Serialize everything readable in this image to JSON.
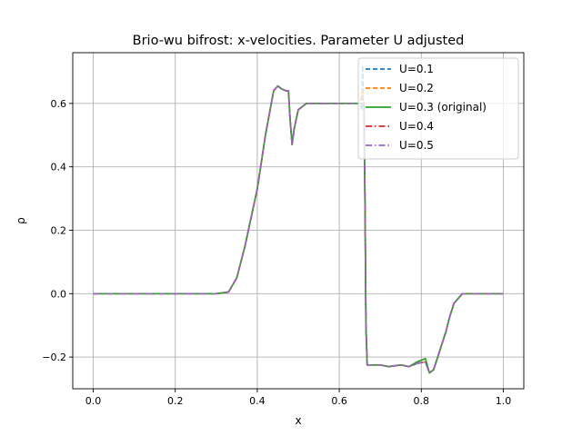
{
  "chart_data": {
    "type": "line",
    "title": "Brio-wu bifrost: x-velocities. Parameter U adjusted",
    "xlabel": "x",
    "ylabel": "ρ",
    "xlim": [
      -0.05,
      1.05
    ],
    "ylim": [
      -0.3,
      0.76
    ],
    "xticks": [
      0.0,
      0.2,
      0.4,
      0.6,
      0.8,
      1.0
    ],
    "xtick_labels": [
      "0.0",
      "0.2",
      "0.4",
      "0.6",
      "0.8",
      "1.0"
    ],
    "yticks": [
      -0.2,
      0.0,
      0.2,
      0.4,
      0.6
    ],
    "ytick_labels": [
      "−0.2",
      "0.0",
      "0.2",
      "0.4",
      "0.6"
    ],
    "grid": true,
    "legend_position": "top-right",
    "series": [
      {
        "name": "U=0.1",
        "color": "#1f77b4",
        "dash": "5,3",
        "width": 1.7,
        "points": [
          [
            0,
            0
          ],
          [
            0.1,
            0
          ],
          [
            0.2,
            0
          ],
          [
            0.3,
            0
          ],
          [
            0.33,
            0.005
          ],
          [
            0.35,
            0.05
          ],
          [
            0.37,
            0.15
          ],
          [
            0.4,
            0.33
          ],
          [
            0.42,
            0.5
          ],
          [
            0.44,
            0.64
          ],
          [
            0.45,
            0.655
          ],
          [
            0.46,
            0.645
          ],
          [
            0.47,
            0.64
          ],
          [
            0.476,
            0.64
          ],
          [
            0.48,
            0.55
          ],
          [
            0.485,
            0.47
          ],
          [
            0.49,
            0.52
          ],
          [
            0.5,
            0.58
          ],
          [
            0.52,
            0.6
          ],
          [
            0.55,
            0.6
          ],
          [
            0.6,
            0.6
          ],
          [
            0.63,
            0.6
          ],
          [
            0.65,
            0.6
          ],
          [
            0.655,
            0.58
          ],
          [
            0.657,
            0.72
          ],
          [
            0.659,
            0.58
          ],
          [
            0.661,
            0.6
          ],
          [
            0.663,
            0.25
          ],
          [
            0.665,
            -0.1
          ],
          [
            0.668,
            -0.225
          ],
          [
            0.7,
            -0.225
          ],
          [
            0.72,
            -0.23
          ],
          [
            0.75,
            -0.225
          ],
          [
            0.77,
            -0.23
          ],
          [
            0.79,
            -0.22
          ],
          [
            0.81,
            -0.215
          ],
          [
            0.82,
            -0.25
          ],
          [
            0.83,
            -0.24
          ],
          [
            0.845,
            -0.18
          ],
          [
            0.86,
            -0.12
          ],
          [
            0.87,
            -0.07
          ],
          [
            0.88,
            -0.03
          ],
          [
            0.9,
            0
          ],
          [
            0.95,
            0
          ],
          [
            1.0,
            0
          ]
        ]
      },
      {
        "name": "U=0.2",
        "color": "#ff7f0e",
        "dash": "5,3",
        "width": 1.7,
        "points": [
          [
            0,
            0
          ],
          [
            0.1,
            0
          ],
          [
            0.2,
            0
          ],
          [
            0.3,
            0
          ],
          [
            0.33,
            0.005
          ],
          [
            0.35,
            0.05
          ],
          [
            0.37,
            0.15
          ],
          [
            0.4,
            0.33
          ],
          [
            0.42,
            0.5
          ],
          [
            0.44,
            0.64
          ],
          [
            0.45,
            0.655
          ],
          [
            0.46,
            0.645
          ],
          [
            0.47,
            0.64
          ],
          [
            0.476,
            0.64
          ],
          [
            0.48,
            0.55
          ],
          [
            0.485,
            0.47
          ],
          [
            0.49,
            0.52
          ],
          [
            0.5,
            0.58
          ],
          [
            0.52,
            0.6
          ],
          [
            0.55,
            0.6
          ],
          [
            0.6,
            0.6
          ],
          [
            0.63,
            0.6
          ],
          [
            0.65,
            0.6
          ],
          [
            0.657,
            0.64
          ],
          [
            0.66,
            0.6
          ],
          [
            0.663,
            0.25
          ],
          [
            0.665,
            -0.1
          ],
          [
            0.668,
            -0.225
          ],
          [
            0.7,
            -0.225
          ],
          [
            0.72,
            -0.23
          ],
          [
            0.75,
            -0.225
          ],
          [
            0.77,
            -0.23
          ],
          [
            0.79,
            -0.22
          ],
          [
            0.81,
            -0.215
          ],
          [
            0.82,
            -0.25
          ],
          [
            0.83,
            -0.24
          ],
          [
            0.845,
            -0.18
          ],
          [
            0.86,
            -0.12
          ],
          [
            0.87,
            -0.07
          ],
          [
            0.88,
            -0.03
          ],
          [
            0.9,
            0
          ],
          [
            0.95,
            0
          ],
          [
            1.0,
            0
          ]
        ]
      },
      {
        "name": "U=0.3 (original)",
        "color": "#2ca02c",
        "dash": "",
        "width": 1.7,
        "points": [
          [
            0,
            0
          ],
          [
            0.1,
            0
          ],
          [
            0.2,
            0
          ],
          [
            0.3,
            0
          ],
          [
            0.33,
            0.005
          ],
          [
            0.35,
            0.05
          ],
          [
            0.37,
            0.15
          ],
          [
            0.4,
            0.33
          ],
          [
            0.42,
            0.5
          ],
          [
            0.44,
            0.64
          ],
          [
            0.45,
            0.655
          ],
          [
            0.46,
            0.645
          ],
          [
            0.47,
            0.64
          ],
          [
            0.476,
            0.64
          ],
          [
            0.48,
            0.55
          ],
          [
            0.485,
            0.47
          ],
          [
            0.49,
            0.52
          ],
          [
            0.5,
            0.58
          ],
          [
            0.52,
            0.6
          ],
          [
            0.55,
            0.6
          ],
          [
            0.6,
            0.6
          ],
          [
            0.63,
            0.6
          ],
          [
            0.66,
            0.6
          ],
          [
            0.663,
            0.25
          ],
          [
            0.665,
            -0.1
          ],
          [
            0.668,
            -0.225
          ],
          [
            0.7,
            -0.225
          ],
          [
            0.72,
            -0.23
          ],
          [
            0.75,
            -0.225
          ],
          [
            0.77,
            -0.23
          ],
          [
            0.79,
            -0.215
          ],
          [
            0.81,
            -0.205
          ],
          [
            0.82,
            -0.25
          ],
          [
            0.83,
            -0.24
          ],
          [
            0.845,
            -0.18
          ],
          [
            0.86,
            -0.12
          ],
          [
            0.87,
            -0.07
          ],
          [
            0.88,
            -0.03
          ],
          [
            0.9,
            0
          ],
          [
            0.95,
            0
          ],
          [
            1.0,
            0
          ]
        ]
      },
      {
        "name": "U=0.4",
        "color": "#d62728",
        "dash": "7,3,1.5,3",
        "width": 1.7,
        "points": [
          [
            0,
            0
          ],
          [
            0.1,
            0
          ],
          [
            0.2,
            0
          ],
          [
            0.3,
            0
          ],
          [
            0.33,
            0.005
          ],
          [
            0.35,
            0.05
          ],
          [
            0.37,
            0.15
          ],
          [
            0.4,
            0.33
          ],
          [
            0.42,
            0.5
          ],
          [
            0.44,
            0.64
          ],
          [
            0.45,
            0.655
          ],
          [
            0.46,
            0.645
          ],
          [
            0.47,
            0.64
          ],
          [
            0.476,
            0.64
          ],
          [
            0.48,
            0.55
          ],
          [
            0.485,
            0.47
          ],
          [
            0.49,
            0.52
          ],
          [
            0.5,
            0.58
          ],
          [
            0.52,
            0.6
          ],
          [
            0.55,
            0.6
          ],
          [
            0.6,
            0.6
          ],
          [
            0.63,
            0.6
          ],
          [
            0.66,
            0.6
          ],
          [
            0.663,
            0.25
          ],
          [
            0.665,
            -0.1
          ],
          [
            0.668,
            -0.225
          ],
          [
            0.7,
            -0.225
          ],
          [
            0.72,
            -0.23
          ],
          [
            0.75,
            -0.225
          ],
          [
            0.77,
            -0.23
          ],
          [
            0.79,
            -0.22
          ],
          [
            0.81,
            -0.215
          ],
          [
            0.82,
            -0.25
          ],
          [
            0.83,
            -0.24
          ],
          [
            0.845,
            -0.18
          ],
          [
            0.86,
            -0.12
          ],
          [
            0.87,
            -0.07
          ],
          [
            0.88,
            -0.03
          ],
          [
            0.9,
            0
          ],
          [
            0.95,
            0
          ],
          [
            1.0,
            0
          ]
        ]
      },
      {
        "name": "U=0.5",
        "color": "#9467bd",
        "dash": "7,3,1.5,3",
        "width": 1.7,
        "points": [
          [
            0,
            0
          ],
          [
            0.1,
            0
          ],
          [
            0.2,
            0
          ],
          [
            0.3,
            0
          ],
          [
            0.33,
            0.005
          ],
          [
            0.35,
            0.05
          ],
          [
            0.37,
            0.15
          ],
          [
            0.4,
            0.33
          ],
          [
            0.42,
            0.5
          ],
          [
            0.44,
            0.64
          ],
          [
            0.45,
            0.655
          ],
          [
            0.46,
            0.645
          ],
          [
            0.47,
            0.64
          ],
          [
            0.476,
            0.64
          ],
          [
            0.48,
            0.55
          ],
          [
            0.485,
            0.47
          ],
          [
            0.49,
            0.52
          ],
          [
            0.5,
            0.58
          ],
          [
            0.52,
            0.6
          ],
          [
            0.55,
            0.6
          ],
          [
            0.6,
            0.6
          ],
          [
            0.63,
            0.6
          ],
          [
            0.66,
            0.6
          ],
          [
            0.663,
            0.25
          ],
          [
            0.665,
            -0.1
          ],
          [
            0.668,
            -0.225
          ],
          [
            0.7,
            -0.225
          ],
          [
            0.72,
            -0.23
          ],
          [
            0.75,
            -0.225
          ],
          [
            0.77,
            -0.23
          ],
          [
            0.79,
            -0.22
          ],
          [
            0.81,
            -0.215
          ],
          [
            0.82,
            -0.25
          ],
          [
            0.83,
            -0.24
          ],
          [
            0.845,
            -0.18
          ],
          [
            0.86,
            -0.12
          ],
          [
            0.87,
            -0.07
          ],
          [
            0.88,
            -0.03
          ],
          [
            0.9,
            0
          ],
          [
            0.95,
            0
          ],
          [
            1.0,
            0
          ]
        ]
      }
    ]
  }
}
